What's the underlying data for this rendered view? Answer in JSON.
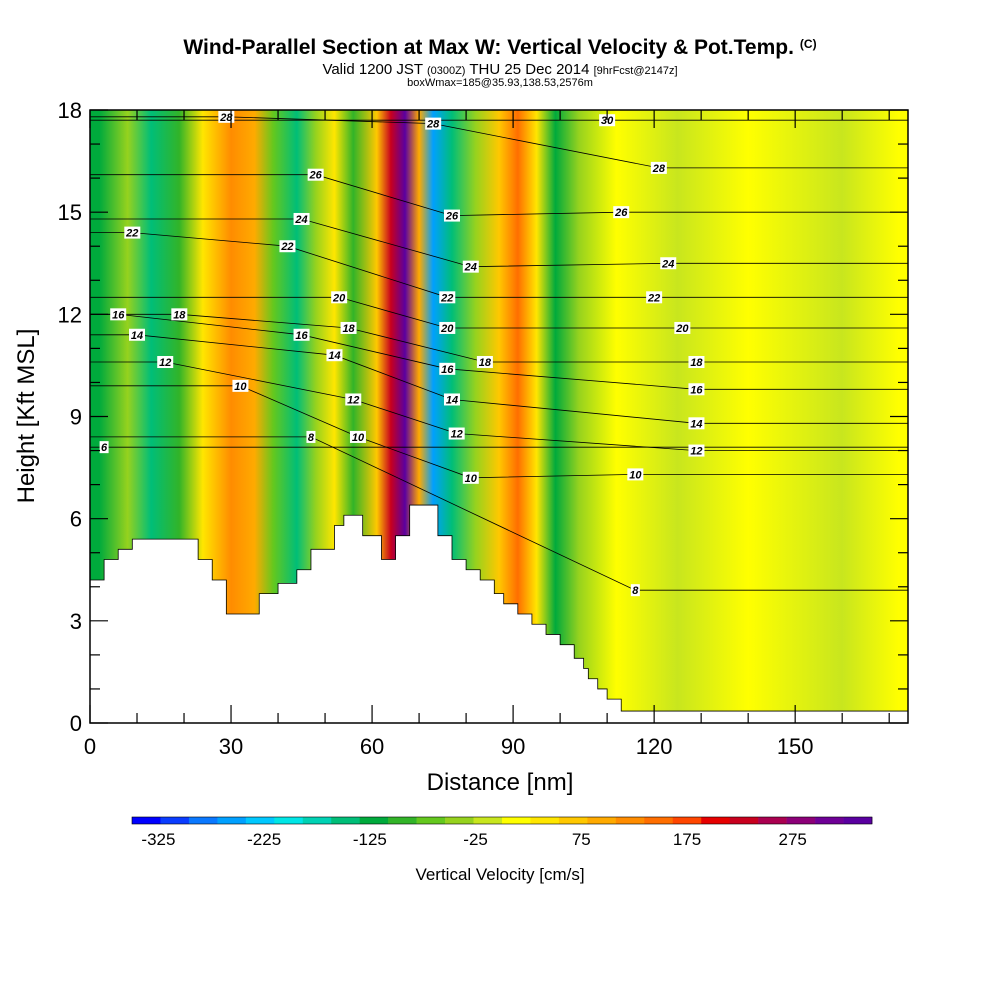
{
  "header": {
    "title": "Wind-Parallel Section at Max W: Vertical Velocity & Pot.Temp.",
    "title_mark": "(C)",
    "valid_prefix": "Valid 1200 JST",
    "valid_utc": "(0300Z)",
    "valid_date": "THU 25 Dec 2014",
    "forecast": "[9hrFcst@2147z]",
    "box_info": "boxWmax=185@35.93,138.53,2576m"
  },
  "chart_data": {
    "type": "heatmap",
    "xlabel": "Distance [nm]",
    "ylabel": "Height [Kft MSL]",
    "xlim": [
      0,
      174
    ],
    "ylim": [
      0,
      18
    ],
    "x_ticks": [
      0,
      30,
      60,
      90,
      120,
      150
    ],
    "y_ticks": [
      0,
      3,
      6,
      9,
      12,
      15,
      18
    ],
    "colorbar": {
      "label": "Vertical Velocity [cm/s]",
      "range": [
        -350,
        350
      ],
      "tick_labels": [
        "-325",
        "-225",
        "-125",
        "-25",
        "75",
        "175",
        "275"
      ],
      "colors": [
        "#0000ff",
        "#0a3cff",
        "#0a78ff",
        "#00a0ff",
        "#00c8ff",
        "#00e6e6",
        "#00d2b4",
        "#00be78",
        "#00aa3c",
        "#32b428",
        "#64c81e",
        "#96d21e",
        "#c8e61e",
        "#ffff00",
        "#ffe600",
        "#ffc800",
        "#ffaa00",
        "#ff8c00",
        "#ff6e00",
        "#ff4600",
        "#e60000",
        "#c8001e",
        "#aa0050",
        "#8c0078",
        "#6e0096",
        "#5a00a0"
      ]
    },
    "vertical_velocity_bands": [
      {
        "x": 2,
        "w": -120
      },
      {
        "x": 8,
        "w": -40
      },
      {
        "x": 13,
        "w": -140
      },
      {
        "x": 19,
        "w": -100
      },
      {
        "x": 24,
        "w": 30
      },
      {
        "x": 30,
        "w": 120
      },
      {
        "x": 35,
        "w": 90
      },
      {
        "x": 39,
        "w": -80
      },
      {
        "x": 44,
        "w": -150
      },
      {
        "x": 48,
        "w": -30
      },
      {
        "x": 52,
        "w": 50
      },
      {
        "x": 56,
        "w": -100
      },
      {
        "x": 61,
        "w": 60
      },
      {
        "x": 64,
        "w": 230
      },
      {
        "x": 67,
        "w": 330
      },
      {
        "x": 70,
        "w": 100
      },
      {
        "x": 73,
        "w": -250
      },
      {
        "x": 77,
        "w": -150
      },
      {
        "x": 82,
        "w": -40
      },
      {
        "x": 87,
        "w": 60
      },
      {
        "x": 91,
        "w": 150
      },
      {
        "x": 95,
        "w": 50
      },
      {
        "x": 99,
        "w": -120
      },
      {
        "x": 104,
        "w": -40
      },
      {
        "x": 112,
        "w": 20
      },
      {
        "x": 125,
        "w": -25
      },
      {
        "x": 140,
        "w": 0
      },
      {
        "x": 160,
        "w": -20
      },
      {
        "x": 172,
        "w": 10
      }
    ],
    "terrain": [
      {
        "x": 0,
        "h": 4.2
      },
      {
        "x": 3,
        "h": 4.8
      },
      {
        "x": 6,
        "h": 5.1
      },
      {
        "x": 9,
        "h": 5.4
      },
      {
        "x": 21,
        "h": 5.4
      },
      {
        "x": 23,
        "h": 4.8
      },
      {
        "x": 26,
        "h": 4.2
      },
      {
        "x": 29,
        "h": 3.2
      },
      {
        "x": 36,
        "h": 3.8
      },
      {
        "x": 40,
        "h": 4.1
      },
      {
        "x": 44,
        "h": 4.5
      },
      {
        "x": 47,
        "h": 5.1
      },
      {
        "x": 52,
        "h": 5.8
      },
      {
        "x": 54,
        "h": 6.1
      },
      {
        "x": 58,
        "h": 5.5
      },
      {
        "x": 62,
        "h": 4.8
      },
      {
        "x": 65,
        "h": 5.5
      },
      {
        "x": 68,
        "h": 6.4
      },
      {
        "x": 74,
        "h": 5.5
      },
      {
        "x": 77,
        "h": 4.8
      },
      {
        "x": 80,
        "h": 4.5
      },
      {
        "x": 83,
        "h": 4.2
      },
      {
        "x": 86,
        "h": 3.8
      },
      {
        "x": 88,
        "h": 3.5
      },
      {
        "x": 91,
        "h": 3.2
      },
      {
        "x": 94,
        "h": 2.9
      },
      {
        "x": 97,
        "h": 2.6
      },
      {
        "x": 100,
        "h": 2.3
      },
      {
        "x": 103,
        "h": 1.9
      },
      {
        "x": 105,
        "h": 1.6
      },
      {
        "x": 106,
        "h": 1.3
      },
      {
        "x": 108,
        "h": 1.0
      },
      {
        "x": 110,
        "h": 0.7
      },
      {
        "x": 113,
        "h": 0.35
      },
      {
        "x": 116,
        "h": 0.35
      },
      {
        "x": 174,
        "h": 0.35
      }
    ],
    "theta_contour_labels": [
      {
        "x": 3,
        "y": 8.1,
        "text": "6"
      },
      {
        "x": 47,
        "y": 8.4,
        "text": "8"
      },
      {
        "x": 116,
        "y": 3.9,
        "text": "8"
      },
      {
        "x": 32,
        "y": 9.9,
        "text": "10"
      },
      {
        "x": 57,
        "y": 8.4,
        "text": "10"
      },
      {
        "x": 81,
        "y": 7.2,
        "text": "10"
      },
      {
        "x": 116,
        "y": 7.3,
        "text": "10"
      },
      {
        "x": 16,
        "y": 10.6,
        "text": "12"
      },
      {
        "x": 56,
        "y": 9.5,
        "text": "12"
      },
      {
        "x": 78,
        "y": 8.5,
        "text": "12"
      },
      {
        "x": 129,
        "y": 8.0,
        "text": "12"
      },
      {
        "x": 10,
        "y": 11.4,
        "text": "14"
      },
      {
        "x": 52,
        "y": 10.8,
        "text": "14"
      },
      {
        "x": 77,
        "y": 9.5,
        "text": "14"
      },
      {
        "x": 129,
        "y": 8.8,
        "text": "14"
      },
      {
        "x": 6,
        "y": 12.0,
        "text": "16"
      },
      {
        "x": 45,
        "y": 11.4,
        "text": "16"
      },
      {
        "x": 76,
        "y": 10.4,
        "text": "16"
      },
      {
        "x": 129,
        "y": 9.8,
        "text": "16"
      },
      {
        "x": 19,
        "y": 12.0,
        "text": "18"
      },
      {
        "x": 55,
        "y": 11.6,
        "text": "18"
      },
      {
        "x": 84,
        "y": 10.6,
        "text": "18"
      },
      {
        "x": 129,
        "y": 10.6,
        "text": "18"
      },
      {
        "x": 53,
        "y": 12.5,
        "text": "20"
      },
      {
        "x": 76,
        "y": 11.6,
        "text": "20"
      },
      {
        "x": 126,
        "y": 11.6,
        "text": "20"
      },
      {
        "x": 9,
        "y": 14.4,
        "text": "22"
      },
      {
        "x": 42,
        "y": 14.0,
        "text": "22"
      },
      {
        "x": 76,
        "y": 12.5,
        "text": "22"
      },
      {
        "x": 120,
        "y": 12.5,
        "text": "22"
      },
      {
        "x": 45,
        "y": 14.8,
        "text": "24"
      },
      {
        "x": 81,
        "y": 13.4,
        "text": "24"
      },
      {
        "x": 123,
        "y": 13.5,
        "text": "24"
      },
      {
        "x": 48,
        "y": 16.1,
        "text": "26"
      },
      {
        "x": 77,
        "y": 14.9,
        "text": "26"
      },
      {
        "x": 113,
        "y": 15.0,
        "text": "26"
      },
      {
        "x": 29,
        "y": 17.8,
        "text": "28"
      },
      {
        "x": 73,
        "y": 17.6,
        "text": "28"
      },
      {
        "x": 121,
        "y": 16.3,
        "text": "28"
      },
      {
        "x": 110,
        "y": 17.7,
        "text": "30"
      }
    ]
  }
}
